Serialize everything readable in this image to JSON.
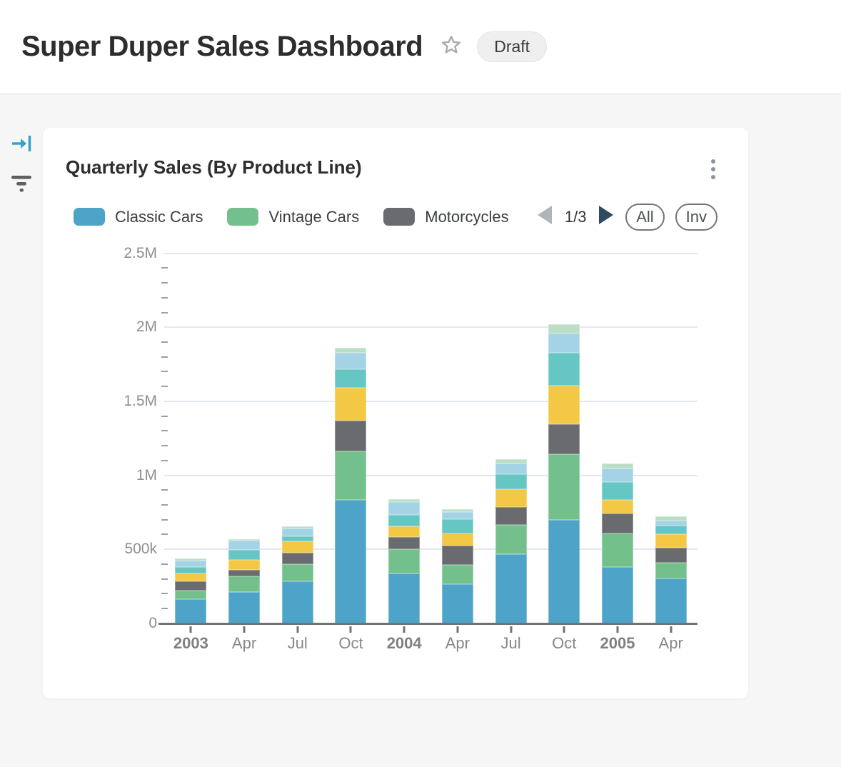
{
  "header": {
    "title": "Super Duper Sales Dashboard",
    "status_badge": "Draft"
  },
  "card": {
    "title": "Quarterly Sales (By Product Line)"
  },
  "legend": {
    "items": [
      {
        "label": "Classic Cars",
        "color": "#4da4c8"
      },
      {
        "label": "Vintage Cars",
        "color": "#74c08c"
      },
      {
        "label": "Motorcycles",
        "color": "#696b6e"
      }
    ],
    "pagination": {
      "page_text": "1/3",
      "prev_enabled": false,
      "next_enabled": true
    },
    "buttons": {
      "all_label": "All",
      "invert_label": "Inv"
    }
  },
  "colors": {
    "accent_blue": "#35a1c9",
    "pager_prev": "#b2b5b7",
    "pager_next": "#2e4a5e",
    "gridline": "#e3e7f1",
    "axis": "#6f7377"
  },
  "chart_data": {
    "type": "bar",
    "stacked": true,
    "title": "Quarterly Sales (By Product Line)",
    "categories": [
      "2003",
      "Apr",
      "Jul",
      "Oct",
      "2004",
      "Apr",
      "Jul",
      "Oct",
      "2005",
      "Apr"
    ],
    "year_label_indices": [
      0,
      4,
      8
    ],
    "ylim": [
      0,
      2500000
    ],
    "y_ticks": [
      {
        "value": 0,
        "label": "0"
      },
      {
        "value": 500000,
        "label": "500k"
      },
      {
        "value": 1000000,
        "label": "1M"
      },
      {
        "value": 1500000,
        "label": "1.5M"
      },
      {
        "value": 2000000,
        "label": "2M"
      },
      {
        "value": 2500000,
        "label": "2.5M"
      }
    ],
    "y_minor_step": 100000,
    "grid": "horizontal",
    "legend_position": "top",
    "series": [
      {
        "name": "Classic Cars",
        "color": "#4da4c8",
        "values": [
          165000,
          210000,
          285000,
          833000,
          335000,
          263000,
          469000,
          698000,
          378000,
          301000
        ]
      },
      {
        "name": "Vintage Cars",
        "color": "#74c08c",
        "values": [
          57000,
          105000,
          113000,
          330000,
          164000,
          132000,
          197000,
          443000,
          231000,
          110000
        ]
      },
      {
        "name": "Motorcycles",
        "color": "#696b6e",
        "values": [
          62000,
          45000,
          77000,
          206000,
          86000,
          129000,
          121000,
          202000,
          135000,
          97000
        ]
      },
      {
        "name": "unlabeled-yellow-series",
        "color": "#f3c844",
        "values": [
          51000,
          70000,
          80000,
          221000,
          71000,
          84000,
          117000,
          261000,
          90000,
          93000
        ]
      },
      {
        "name": "unlabeled-teal-series",
        "color": "#65c6c4",
        "values": [
          44000,
          68000,
          32000,
          129000,
          77000,
          94000,
          103000,
          222000,
          121000,
          59000
        ]
      },
      {
        "name": "unlabeled-lightblue-series",
        "color": "#a3d3e4",
        "values": [
          44000,
          60000,
          53000,
          110000,
          84000,
          51000,
          74000,
          132000,
          92000,
          36000
        ]
      },
      {
        "name": "unlabeled-palegreen-series",
        "color": "#badfc6",
        "values": [
          17000,
          12000,
          16000,
          35000,
          21000,
          16000,
          28000,
          65000,
          32000,
          29000
        ]
      }
    ]
  }
}
